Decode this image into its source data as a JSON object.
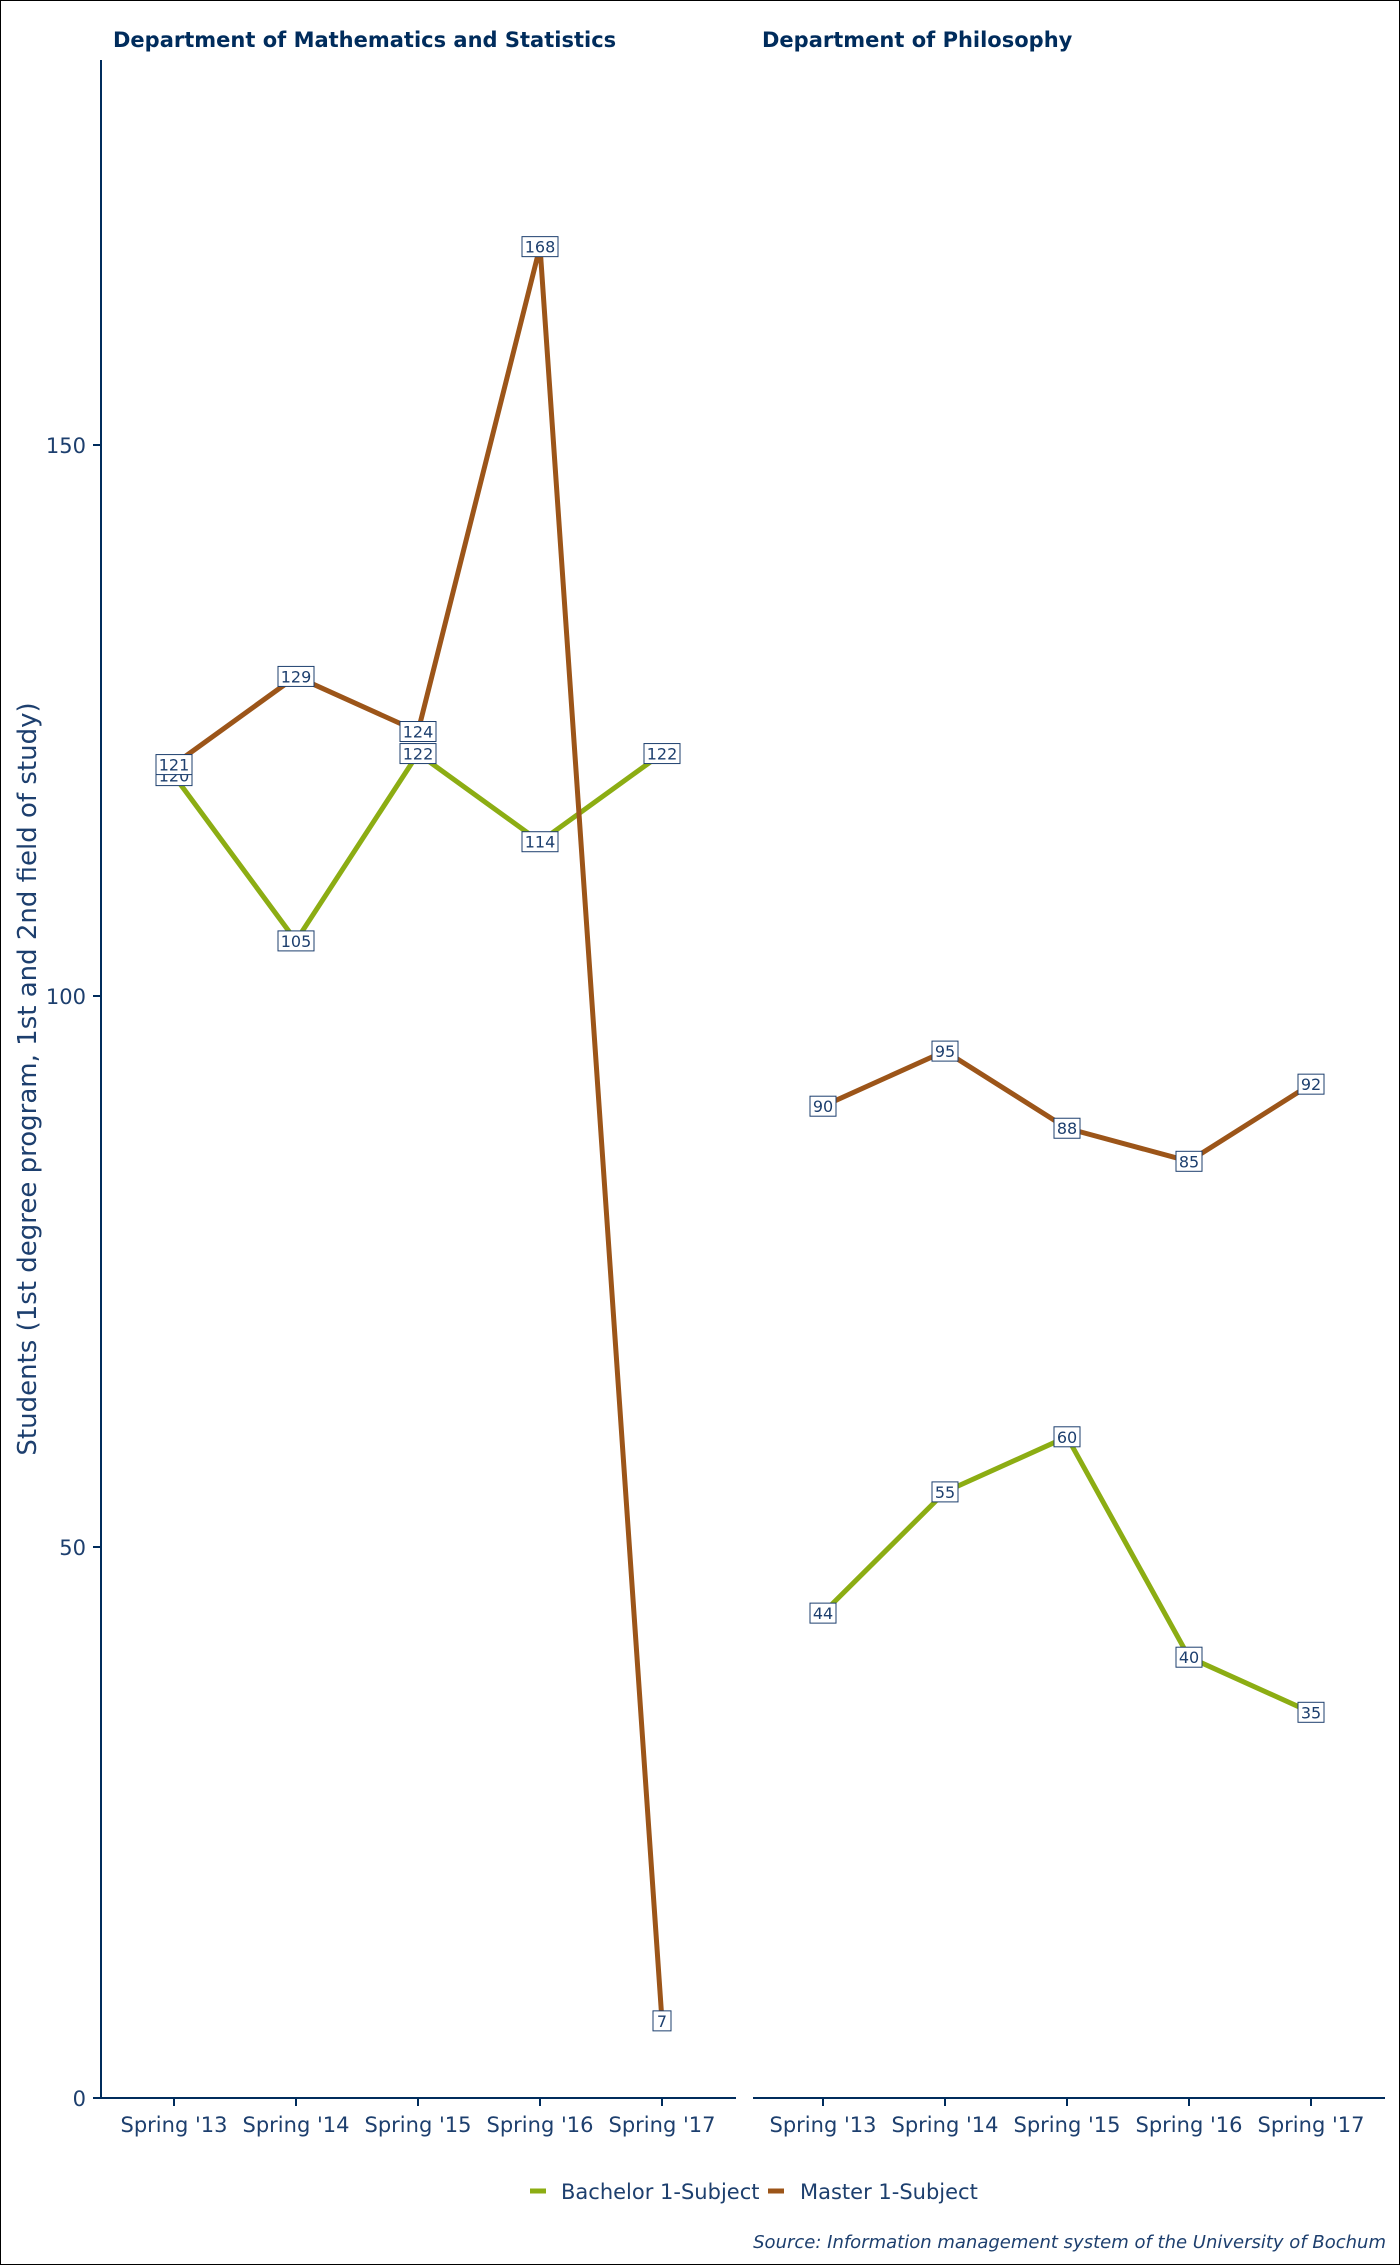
{
  "chart_data": {
    "type": "line",
    "ylabel": "Students (1st degree program, 1st and 2nd field of study)",
    "ylim": [
      0,
      185
    ],
    "yticks": [
      0,
      50,
      100,
      150
    ],
    "categories": [
      "Spring '13",
      "Spring '14",
      "Spring '15",
      "Spring '16",
      "Spring '17"
    ],
    "panels": [
      {
        "title": "Department of Mathematics and Statistics",
        "series": [
          {
            "name": "Bachelor 1-Subject",
            "values": [
              120,
              105,
              122,
              114,
              122
            ]
          },
          {
            "name": "Master 1-Subject",
            "values": [
              121,
              129,
              124,
              168,
              7
            ]
          }
        ]
      },
      {
        "title": "Department of Philosophy",
        "series": [
          {
            "name": "Bachelor 1-Subject",
            "values": [
              44,
              55,
              60,
              40,
              35
            ]
          },
          {
            "name": "Master 1-Subject",
            "values": [
              90,
              95,
              88,
              85,
              92
            ]
          }
        ]
      }
    ],
    "legend": {
      "placement": "bottom",
      "items": [
        {
          "label": "Bachelor 1-Subject",
          "color": "#8cad13"
        },
        {
          "label": "Master 1-Subject",
          "color": "#9c5519"
        }
      ]
    },
    "source": "Source: Information management system of the University of Bochum"
  }
}
